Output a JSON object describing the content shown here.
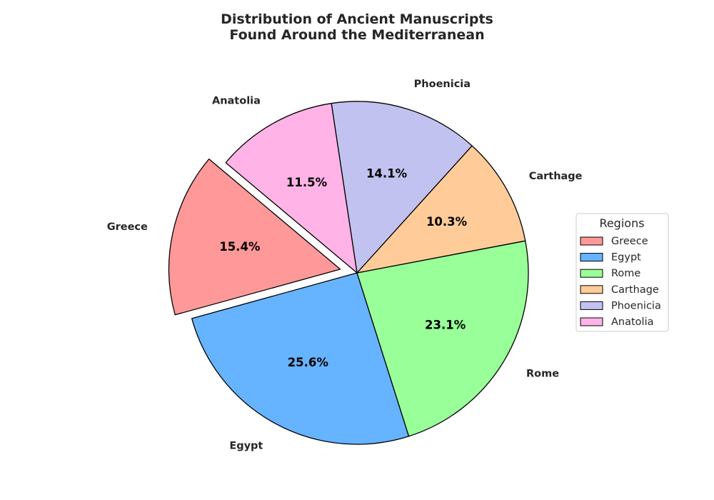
{
  "chart_data": {
    "type": "pie",
    "title_lines": [
      "Distribution of Ancient Manuscripts",
      "Found Around the Mediterranean"
    ],
    "categories": [
      "Greece",
      "Egypt",
      "Rome",
      "Carthage",
      "Phoenicia",
      "Anatolia"
    ],
    "values": [
      15.4,
      25.6,
      23.1,
      10.3,
      14.1,
      11.5
    ],
    "value_labels": [
      "15.4%",
      "25.6%",
      "23.1%",
      "10.3%",
      "14.1%",
      "11.5%"
    ],
    "colors": [
      "#ff9999",
      "#66b3ff",
      "#99ff99",
      "#ffcc99",
      "#c2c2f0",
      "#ffb3e6"
    ],
    "exploded": [
      "Greece"
    ],
    "start_angle_deg": 140,
    "direction": "counterclockwise",
    "legend": {
      "title": "Regions",
      "placement": "center-right",
      "entries": [
        "Greece",
        "Egypt",
        "Rome",
        "Carthage",
        "Phoenicia",
        "Anatolia"
      ]
    }
  }
}
